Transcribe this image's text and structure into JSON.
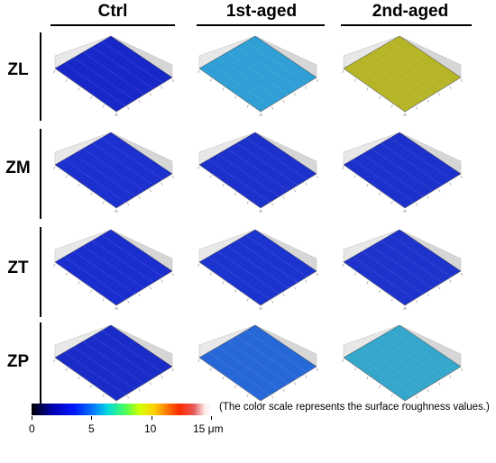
{
  "columns": [
    "Ctrl",
    "1st-aged",
    "2nd-aged"
  ],
  "rows": [
    "ZL",
    "ZM",
    "ZT",
    "ZP"
  ],
  "surface_colors": [
    [
      "#1828c8",
      "#2f9fd6",
      "#b6b528"
    ],
    [
      "#1c2fcf",
      "#1c30cc",
      "#1c30cc"
    ],
    [
      "#1a2ed0",
      "#1c34cf",
      "#1d33cc"
    ],
    [
      "#1a2cc8",
      "#2768d8",
      "#35a6cc"
    ]
  ],
  "colorbar": {
    "ticks": [
      "0",
      "5",
      "10",
      "15 μm"
    ],
    "caption": "(The color scale represents the surface roughness values.)"
  }
}
